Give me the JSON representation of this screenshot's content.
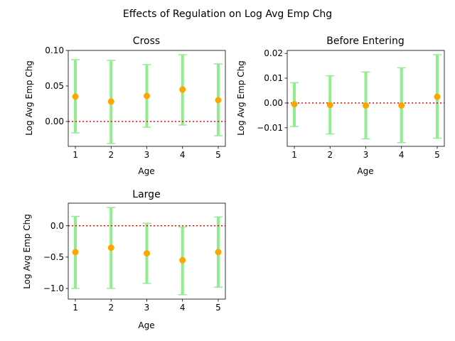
{
  "suptitle": "Effects of Regulation on Log Avg Emp Chg",
  "colors": {
    "errorbar": "#90ee90",
    "point": "#ffa500",
    "zero_line": "#ff0000",
    "axes": "#000000"
  },
  "chart_data": [
    {
      "type": "errorbar",
      "title": "Cross",
      "xlabel": "Age",
      "ylabel": "Log Avg Emp Chg",
      "x": [
        1,
        2,
        3,
        4,
        5
      ],
      "x_ticks": [
        "1",
        "2",
        "3",
        "4",
        "5"
      ],
      "values": [
        0.035,
        0.028,
        0.036,
        0.045,
        0.03
      ],
      "lower": [
        -0.016,
        -0.031,
        -0.008,
        -0.005,
        -0.02
      ],
      "upper": [
        0.087,
        0.086,
        0.08,
        0.094,
        0.081
      ],
      "ylim": [
        -0.035,
        0.1
      ],
      "y_ticks": [
        {
          "v": 0.0,
          "label": "0.00"
        },
        {
          "v": 0.05,
          "label": "0.05"
        },
        {
          "v": 0.1,
          "label": "0.10"
        }
      ],
      "reference_line": 0
    },
    {
      "type": "errorbar",
      "title": "Before Entering",
      "xlabel": "Age",
      "ylabel": "Log Avg Emp Chg",
      "x": [
        1,
        2,
        3,
        4,
        5
      ],
      "x_ticks": [
        "1",
        "2",
        "3",
        "4",
        "5"
      ],
      "values": [
        -0.0005,
        -0.0008,
        -0.001,
        -0.001,
        0.0025
      ],
      "lower": [
        -0.0095,
        -0.0125,
        -0.0145,
        -0.016,
        -0.0142
      ],
      "upper": [
        0.0082,
        0.011,
        0.0125,
        0.0142,
        0.0195
      ],
      "ylim": [
        -0.0175,
        0.0212
      ],
      "y_ticks": [
        {
          "v": -0.01,
          "label": "−0.01"
        },
        {
          "v": 0.0,
          "label": "0.00"
        },
        {
          "v": 0.01,
          "label": "0.01"
        },
        {
          "v": 0.02,
          "label": "0.02"
        }
      ],
      "reference_line": 0
    },
    {
      "type": "errorbar",
      "title": "Large",
      "xlabel": "Age",
      "ylabel": "Log Avg Emp Chg",
      "x": [
        1,
        2,
        3,
        4,
        5
      ],
      "x_ticks": [
        "1",
        "2",
        "3",
        "4",
        "5"
      ],
      "values": [
        -0.42,
        -0.35,
        -0.44,
        -0.55,
        -0.42
      ],
      "lower": [
        -1.0,
        -1.0,
        -0.92,
        -1.1,
        -0.98
      ],
      "upper": [
        0.15,
        0.29,
        0.04,
        -0.02,
        0.14
      ],
      "ylim": [
        -1.17,
        0.36
      ],
      "y_ticks": [
        {
          "v": -1.0,
          "label": "−1.0"
        },
        {
          "v": -0.5,
          "label": "−0.5"
        },
        {
          "v": 0.0,
          "label": "0.0"
        }
      ],
      "reference_line": 0
    }
  ]
}
